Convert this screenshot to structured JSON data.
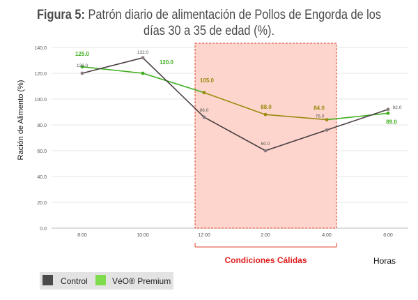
{
  "title": {
    "prefix": "Figura 5:",
    "text": "Patrón diario de alimentación de Pollos de Engorda de los días 30 a 35 de edad (%)."
  },
  "chart_data": {
    "type": "line",
    "ylabel": "Ración de Alimento (%)",
    "xlabel": "Horas",
    "categories": [
      "8:00",
      "10:00",
      "12:00",
      "2:00",
      "4:00",
      "6:00"
    ],
    "ylim": [
      0,
      140
    ],
    "yticks": [
      "0.0",
      "20.0",
      "40.0",
      "60.0",
      "80.0",
      "100.0",
      "120.0",
      "140.0"
    ],
    "grid": true,
    "legend_position": "bottom-left",
    "series": [
      {
        "name": "Control",
        "color": "#4a3e42",
        "values": [
          120.0,
          132.0,
          86.0,
          60.0,
          76.0,
          92.0
        ],
        "labels": [
          "120.0",
          "132.0",
          "86.0",
          "60.0",
          "76.0",
          "92.0"
        ]
      },
      {
        "name": "VéO® Premium",
        "color": "#3fae1e",
        "values": [
          125.0,
          120.0,
          105.0,
          88.0,
          84.0,
          89.0
        ],
        "labels": [
          "125.0",
          "120.0",
          "105.0",
          "88.0",
          "84.0",
          "89.0"
        ]
      }
    ],
    "highlight": {
      "label": "Condiciones Cálidas",
      "from": "12:00",
      "to": "4:00",
      "fill": "#fdd5cc",
      "border": "#e0402a",
      "label_color": "#e01d1d"
    },
    "warm_segment_color": "#9a8a10"
  },
  "legend": {
    "items": [
      {
        "label": "Control",
        "color": "#4a4a4a"
      },
      {
        "label": "VéO® Premium",
        "color": "#7fdc4c"
      }
    ]
  }
}
